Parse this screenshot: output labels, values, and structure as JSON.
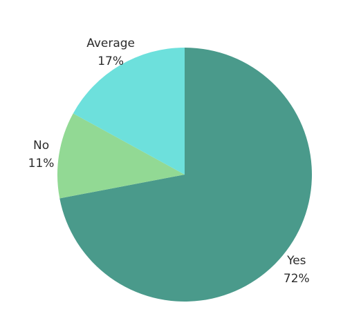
{
  "chart_data": {
    "type": "pie",
    "title": "",
    "slices": [
      {
        "label": "Yes",
        "value": 72,
        "display": "72%",
        "color": "#4a9a8b"
      },
      {
        "label": "No",
        "value": 11,
        "display": "11%",
        "color": "#92d994"
      },
      {
        "label": "Average",
        "value": 17,
        "display": "17%",
        "color": "#6de0dc"
      }
    ]
  }
}
